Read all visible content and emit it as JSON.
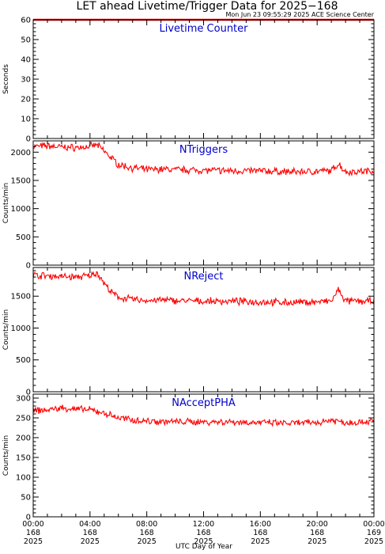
{
  "title": "LET ahead Livetime/Trigger Data for 2025−168",
  "timestamp": "Mon Jun 23 09:55:29 2025 ACE Science Center",
  "xlabel": "UTC Day of Year",
  "x_ticks": [
    {
      "hm": "00:00",
      "doy": "168",
      "year": "2025"
    },
    {
      "hm": "04:00",
      "doy": "168",
      "year": "2025"
    },
    {
      "hm": "08:00",
      "doy": "168",
      "year": "2025"
    },
    {
      "hm": "12:00",
      "doy": "168",
      "year": "2025"
    },
    {
      "hm": "16:00",
      "doy": "168",
      "year": "2025"
    },
    {
      "hm": "20:00",
      "doy": "168",
      "year": "2025"
    },
    {
      "hm": "00:00",
      "doy": "169",
      "year": "2025"
    }
  ],
  "colors": {
    "series": "#ff0000",
    "label": "#0000cc",
    "axis": "#000000"
  },
  "chart_data": [
    {
      "type": "line",
      "title": "Livetime Counter",
      "ylabel": "Seconds",
      "xlim": [
        0,
        24
      ],
      "ylim": [
        0,
        60
      ],
      "yticks": [
        0,
        10,
        20,
        30,
        40,
        50,
        60
      ],
      "series": [
        {
          "x": [
            0,
            24
          ],
          "values": [
            60,
            60
          ]
        }
      ]
    },
    {
      "type": "line",
      "title": "NTriggers",
      "ylabel": "Counts/min",
      "xlim": [
        0,
        24
      ],
      "ylim": [
        0,
        2200
      ],
      "yticks": [
        0,
        500,
        1000,
        1500,
        2000
      ],
      "series": [
        {
          "x": [
            0,
            1,
            2,
            3,
            4,
            4.5,
            5,
            5.5,
            6,
            7,
            8,
            9,
            10,
            12,
            14,
            16,
            18,
            20,
            21,
            21.5,
            22,
            23,
            24
          ],
          "values": [
            2100,
            2110,
            2090,
            2080,
            2100,
            2130,
            2020,
            1900,
            1780,
            1720,
            1690,
            1700,
            1690,
            1680,
            1670,
            1670,
            1650,
            1660,
            1670,
            1800,
            1650,
            1660,
            1670
          ]
        }
      ]
    },
    {
      "type": "line",
      "title": "NReject",
      "ylabel": "Counts/min",
      "xlim": [
        0,
        24
      ],
      "ylim": [
        0,
        1950
      ],
      "yticks": [
        0,
        500,
        1000,
        1500
      ],
      "series": [
        {
          "x": [
            0,
            1,
            2,
            3,
            4,
            4.5,
            5,
            5.5,
            6,
            7,
            8,
            9,
            10,
            12,
            14,
            16,
            18,
            20,
            21,
            21.5,
            22,
            23,
            24
          ],
          "values": [
            1830,
            1820,
            1810,
            1800,
            1820,
            1870,
            1700,
            1560,
            1480,
            1450,
            1430,
            1440,
            1430,
            1420,
            1420,
            1410,
            1400,
            1410,
            1420,
            1600,
            1420,
            1420,
            1420
          ]
        }
      ]
    },
    {
      "type": "line",
      "title": "NAcceptPHA",
      "ylabel": "Counts/min",
      "xlim": [
        0,
        24
      ],
      "ylim": [
        0,
        310
      ],
      "yticks": [
        0,
        50,
        100,
        150,
        200,
        250,
        300
      ],
      "series": [
        {
          "x": [
            0,
            1,
            2,
            3,
            4,
            5,
            6,
            7,
            8,
            10,
            12,
            14,
            16,
            18,
            20,
            21,
            22,
            23,
            24
          ],
          "values": [
            268,
            270,
            275,
            272,
            270,
            262,
            250,
            245,
            242,
            240,
            240,
            240,
            238,
            236,
            238,
            245,
            238,
            240,
            242
          ]
        }
      ]
    }
  ]
}
